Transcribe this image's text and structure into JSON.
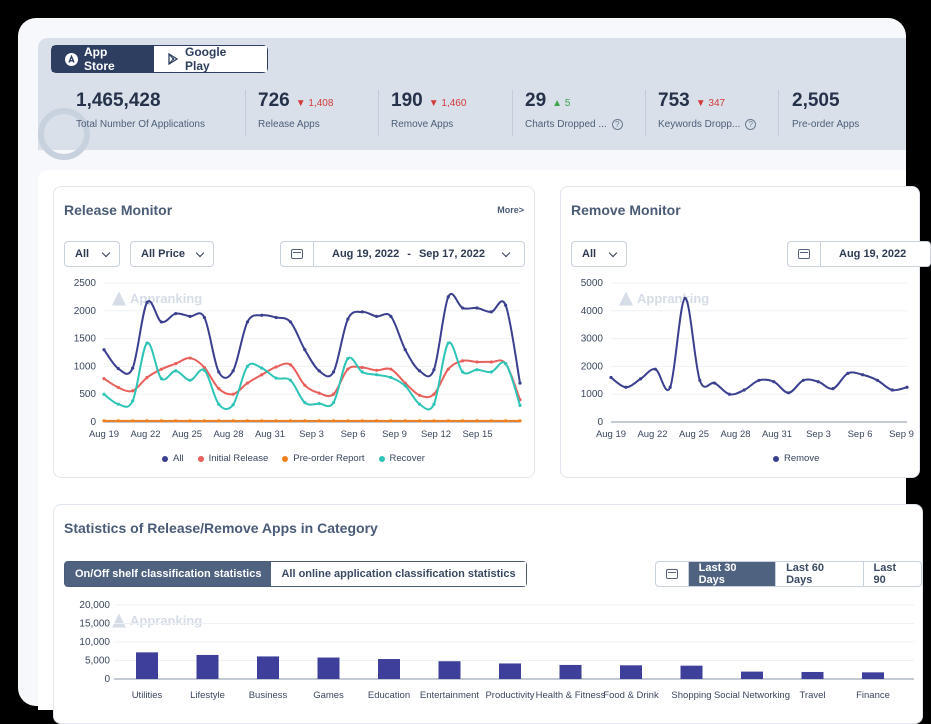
{
  "store_tabs": [
    {
      "label": "App Store",
      "active": true
    },
    {
      "label": "Google Play",
      "active": false
    }
  ],
  "stats": [
    {
      "value": "1,465,428",
      "delta": "",
      "dir": "",
      "label": "Total Number Of Applications",
      "help": false
    },
    {
      "value": "726",
      "delta": "1,408",
      "dir": "down",
      "label": "Release Apps",
      "help": false
    },
    {
      "value": "190",
      "delta": "1,460",
      "dir": "down",
      "label": "Remove Apps",
      "help": false
    },
    {
      "value": "29",
      "delta": "5",
      "dir": "up",
      "label": "Charts Dropped ...",
      "help": true
    },
    {
      "value": "753",
      "delta": "347",
      "dir": "down",
      "label": "Keywords Dropp...",
      "help": true
    },
    {
      "value": "2,505",
      "delta": "",
      "dir": "",
      "label": "Pre-order Apps",
      "help": false
    }
  ],
  "release_monitor": {
    "title": "Release Monitor",
    "more": "More>",
    "filter_all": "All",
    "filter_price": "All Price",
    "date_start": "Aug 19, 2022",
    "date_sep": "-",
    "date_end": "Sep 17, 2022",
    "watermark": "Appranking"
  },
  "remove_monitor": {
    "title": "Remove Monitor",
    "filter_all": "All",
    "date_start": "Aug 19, 2022",
    "watermark": "Appranking"
  },
  "category_stats": {
    "title": "Statistics of Release/Remove Apps in Category",
    "tab_active": "On/Off shelf classification statistics",
    "tab_inactive": "All online application classification statistics",
    "range_30": "Last 30 Days",
    "range_60": "Last 60 Days",
    "range_90": "Last 90",
    "watermark": "Appranking"
  },
  "chart_data": [
    {
      "type": "line",
      "title": "Release Monitor",
      "x_ticks": [
        "Aug 19",
        "Aug 22",
        "Aug 25",
        "Aug 28",
        "Aug 31",
        "Sep 3",
        "Sep 6",
        "Sep 9",
        "Sep 12",
        "Sep 15"
      ],
      "y_ticks": [
        "2500",
        "2000",
        "1500",
        "1000",
        "500",
        "0"
      ],
      "ylim": [
        0,
        2500
      ],
      "legend": "bottom",
      "x": [
        "Aug 19",
        "Aug 20",
        "Aug 21",
        "Aug 22",
        "Aug 23",
        "Aug 24",
        "Aug 25",
        "Aug 26",
        "Aug 27",
        "Aug 28",
        "Aug 29",
        "Aug 30",
        "Aug 31",
        "Sep 1",
        "Sep 2",
        "Sep 3",
        "Sep 4",
        "Sep 5",
        "Sep 6",
        "Sep 7",
        "Sep 8",
        "Sep 9",
        "Sep 10",
        "Sep 11",
        "Sep 12",
        "Sep 13",
        "Sep 14",
        "Sep 15",
        "Sep 16",
        "Sep 17"
      ],
      "series": [
        {
          "name": "All",
          "color": "#3a3f8f",
          "values": [
            1300,
            960,
            970,
            2150,
            1800,
            1950,
            1900,
            1880,
            900,
            920,
            1800,
            1920,
            1880,
            1800,
            1300,
            920,
            900,
            1850,
            1980,
            1900,
            1900,
            1300,
            920,
            940,
            2250,
            2050,
            2050,
            1980,
            2100,
            700
          ]
        },
        {
          "name": "Initial Release",
          "color": "#e8605c",
          "values": [
            780,
            620,
            560,
            800,
            950,
            1050,
            1150,
            980,
            600,
            500,
            700,
            850,
            990,
            1030,
            660,
            520,
            500,
            950,
            980,
            930,
            950,
            700,
            480,
            500,
            950,
            1100,
            1080,
            1080,
            1050,
            400
          ]
        },
        {
          "name": "Pre-order Report",
          "color": "#f07f1e",
          "values": [
            20,
            20,
            20,
            20,
            20,
            20,
            20,
            20,
            20,
            20,
            20,
            20,
            20,
            20,
            20,
            20,
            20,
            20,
            20,
            20,
            20,
            20,
            20,
            20,
            20,
            20,
            20,
            20,
            20,
            20
          ]
        },
        {
          "name": "Recover",
          "color": "#2ec4b6",
          "values": [
            500,
            320,
            380,
            1420,
            780,
            920,
            750,
            930,
            320,
            310,
            1000,
            970,
            790,
            750,
            350,
            330,
            350,
            1140,
            900,
            850,
            800,
            650,
            320,
            320,
            1420,
            900,
            940,
            900,
            1050,
            300
          ]
        }
      ]
    },
    {
      "type": "line",
      "title": "Remove Monitor",
      "x_ticks": [
        "Aug 19",
        "Aug 22",
        "Aug 25",
        "Aug 28",
        "Aug 31",
        "Sep 3",
        "Sep 6",
        "Sep 9"
      ],
      "y_ticks": [
        "5000",
        "4000",
        "3000",
        "2000",
        "1000",
        "0"
      ],
      "ylim": [
        0,
        5000
      ],
      "legend": "bottom",
      "x": [
        "Aug 19",
        "Aug 20",
        "Aug 21",
        "Aug 22",
        "Aug 23",
        "Aug 24",
        "Aug 25",
        "Aug 26",
        "Aug 27",
        "Aug 28",
        "Aug 29",
        "Aug 30",
        "Aug 31",
        "Sep 1",
        "Sep 2",
        "Sep 3",
        "Sep 4",
        "Sep 5",
        "Sep 6",
        "Sep 7",
        "Sep 8"
      ],
      "series": [
        {
          "name": "Remove",
          "color": "#3a3f8f",
          "values": [
            1600,
            1250,
            1550,
            1900,
            1250,
            4450,
            1500,
            1400,
            1000,
            1150,
            1500,
            1450,
            1050,
            1500,
            1450,
            1200,
            1750,
            1700,
            1500,
            1150,
            1250
          ]
        }
      ]
    },
    {
      "type": "bar",
      "title": "Statistics of Release/Remove Apps in Category",
      "y_ticks": [
        "20,000",
        "15,000",
        "10,000",
        "5,000",
        "0"
      ],
      "ylim": [
        0,
        20000
      ],
      "categories": [
        "Utilities",
        "Lifestyle",
        "Business",
        "Games",
        "Education",
        "Entertainment",
        "Productivity",
        "Health & Fitness",
        "Food & Drink",
        "Shopping",
        "Social Networking",
        "Travel",
        "Finance"
      ],
      "values": [
        7200,
        6500,
        6100,
        5800,
        5400,
        4800,
        4200,
        3800,
        3700,
        3600,
        2000,
        1900,
        1800
      ],
      "color": "#3d3f9a"
    }
  ]
}
